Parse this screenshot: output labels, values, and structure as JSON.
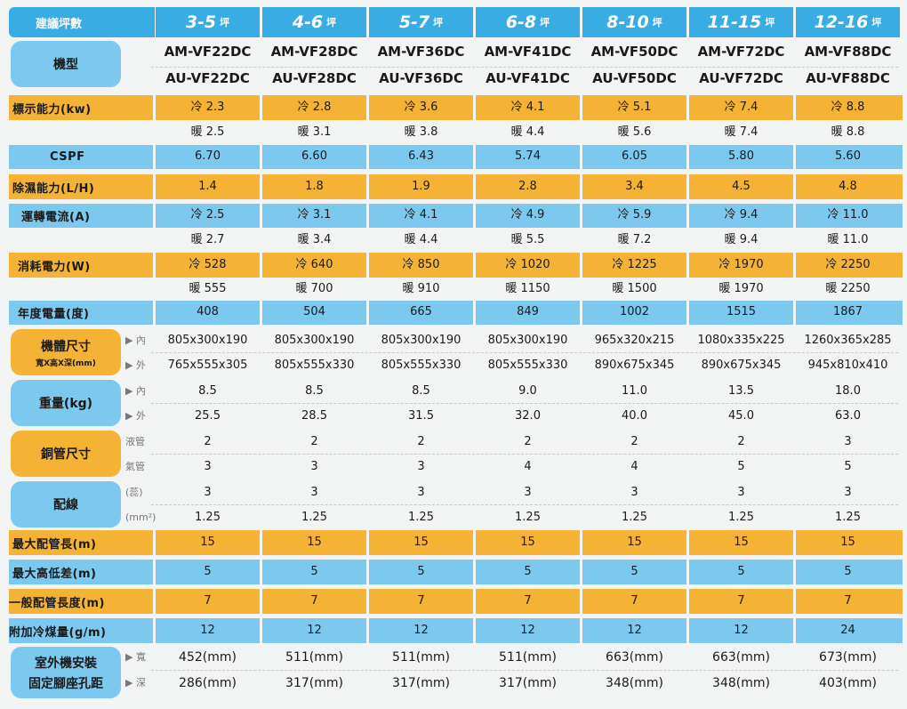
{
  "header": {
    "label": "建議坪數",
    "unit": "坪",
    "ranges": [
      "3-5",
      "4-6",
      "5-7",
      "6-8",
      "8-10",
      "11-15",
      "12-16"
    ]
  },
  "model": {
    "label": "機型",
    "indoor": [
      "AM-VF22DC",
      "AM-VF28DC",
      "AM-VF36DC",
      "AM-VF41DC",
      "AM-VF50DC",
      "AM-VF72DC",
      "AM-VF88DC"
    ],
    "outdoor": [
      "AU-VF22DC",
      "AU-VF28DC",
      "AU-VF36DC",
      "AU-VF41DC",
      "AU-VF50DC",
      "AU-VF72DC",
      "AU-VF88DC"
    ]
  },
  "capacity": {
    "label": "標示能力(kw)",
    "cool": [
      "冷 2.3",
      "冷 2.8",
      "冷 3.6",
      "冷 4.1",
      "冷 5.1",
      "冷 7.4",
      "冷 8.8"
    ],
    "heat": [
      "暖 2.5",
      "暖 3.1",
      "暖 3.8",
      "暖 4.4",
      "暖 5.6",
      "暖 7.4",
      "暖 8.8"
    ]
  },
  "cspf": {
    "label": "CSPF",
    "values": [
      "6.70",
      "6.60",
      "6.43",
      "5.74",
      "6.05",
      "5.80",
      "5.60"
    ]
  },
  "dehumid": {
    "label": "除濕能力(L/H)",
    "values": [
      "1.4",
      "1.8",
      "1.9",
      "2.8",
      "3.4",
      "4.5",
      "4.8"
    ]
  },
  "current": {
    "label": "運轉電流(A)",
    "cool": [
      "冷 2.5",
      "冷 3.1",
      "冷 4.1",
      "冷 4.9",
      "冷 5.9",
      "冷 9.4",
      "冷 11.0"
    ],
    "heat": [
      "暖 2.7",
      "暖 3.4",
      "暖 4.4",
      "暖 5.5",
      "暖 7.2",
      "暖 9.4",
      "暖 11.0"
    ]
  },
  "power": {
    "label": "消耗電力(W)",
    "cool": [
      "冷 528",
      "冷 640",
      "冷 850",
      "冷 1020",
      "冷 1225",
      "冷 1970",
      "冷 2250"
    ],
    "heat": [
      "暖 555",
      "暖 700",
      "暖 910",
      "暖 1150",
      "暖 1500",
      "暖 1970",
      "暖 2250"
    ]
  },
  "annual": {
    "label": "年度電量(度)",
    "values": [
      "408",
      "504",
      "665",
      "849",
      "1002",
      "1515",
      "1867"
    ]
  },
  "size": {
    "label": "機體尺寸",
    "sub": "寬X高X深(mm)",
    "in_tag": "▶ 內",
    "out_tag": "▶ 外",
    "indoor": [
      "805x300x190",
      "805x300x190",
      "805x300x190",
      "805x300x190",
      "965x320x215",
      "1080x335x225",
      "1260x365x285"
    ],
    "outdoor": [
      "765x555x305",
      "805x555x330",
      "805x555x330",
      "805x555x330",
      "890x675x345",
      "890x675x345",
      "945x810x410"
    ]
  },
  "weight": {
    "label": "重量(kg)",
    "in_tag": "▶ 內",
    "out_tag": "▶ 外",
    "indoor": [
      "8.5",
      "8.5",
      "8.5",
      "9.0",
      "11.0",
      "13.5",
      "18.0"
    ],
    "outdoor": [
      "25.5",
      "28.5",
      "31.5",
      "32.0",
      "40.0",
      "45.0",
      "63.0"
    ]
  },
  "pipe": {
    "label": "銅管尺寸",
    "liquid_tag": "液管",
    "gas_tag": "氣管",
    "liquid": [
      "2",
      "2",
      "2",
      "2",
      "2",
      "2",
      "3"
    ],
    "gas": [
      "3",
      "3",
      "3",
      "4",
      "4",
      "5",
      "5"
    ]
  },
  "wiring": {
    "label": "配線",
    "count_tag": "(蕊)",
    "area_tag": "(mm²)",
    "count": [
      "3",
      "3",
      "3",
      "3",
      "3",
      "3",
      "3"
    ],
    "area": [
      "1.25",
      "1.25",
      "1.25",
      "1.25",
      "1.25",
      "1.25",
      "1.25"
    ]
  },
  "max_pipe": {
    "label": "最大配管長(m)",
    "values": [
      "15",
      "15",
      "15",
      "15",
      "15",
      "15",
      "15"
    ]
  },
  "max_height": {
    "label": "最大高低差(m)",
    "values": [
      "5",
      "5",
      "5",
      "5",
      "5",
      "5",
      "5"
    ]
  },
  "std_pipe": {
    "label": "一般配管長度(m)",
    "values": [
      "7",
      "7",
      "7",
      "7",
      "7",
      "7",
      "7"
    ]
  },
  "refrigerant": {
    "label": "附加冷煤量(g/m)",
    "values": [
      "12",
      "12",
      "12",
      "12",
      "12",
      "12",
      "24"
    ]
  },
  "mount": {
    "label1": "室外機安裝",
    "label2": "固定腳座孔距",
    "w_tag": "▶ 寬",
    "d_tag": "▶ 深",
    "width": [
      "452(mm)",
      "511(mm)",
      "511(mm)",
      "511(mm)",
      "663(mm)",
      "663(mm)",
      "673(mm)"
    ],
    "depth": [
      "286(mm)",
      "317(mm)",
      "317(mm)",
      "317(mm)",
      "348(mm)",
      "348(mm)",
      "403(mm)"
    ]
  }
}
